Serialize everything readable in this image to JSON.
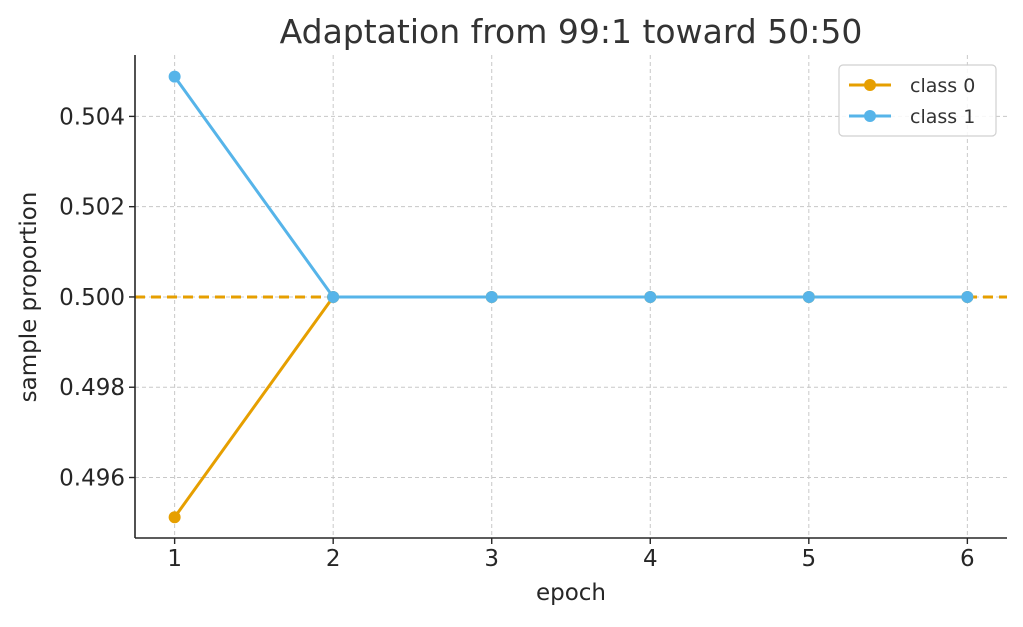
{
  "chart_data": {
    "type": "line",
    "title": "Adaptation from 99:1 toward 50:50",
    "xlabel": "epoch",
    "ylabel": "sample proportion",
    "x": [
      1,
      2,
      3,
      4,
      5,
      6
    ],
    "xlim": [
      0.75,
      6.25
    ],
    "ylim": [
      0.49466,
      0.50536
    ],
    "xticks": [
      "1",
      "2",
      "3",
      "4",
      "5",
      "6"
    ],
    "yticks": [
      "0.496",
      "0.498",
      "0.500",
      "0.502",
      "0.504"
    ],
    "ytick_values": [
      0.496,
      0.498,
      0.5,
      0.502,
      0.504
    ],
    "grid": true,
    "legend_position": "top-right",
    "series": [
      {
        "name": "class 0",
        "color": "#E69F00",
        "values": [
          0.49512,
          0.5,
          0.5,
          0.5,
          0.5,
          0.5
        ]
      },
      {
        "name": "class 1",
        "color": "#56B4E9",
        "values": [
          0.50488,
          0.5,
          0.5,
          0.5,
          0.5,
          0.5
        ]
      }
    ],
    "reference_line": {
      "y": 0.5,
      "color": "#E69F00",
      "style": "dashed"
    }
  }
}
